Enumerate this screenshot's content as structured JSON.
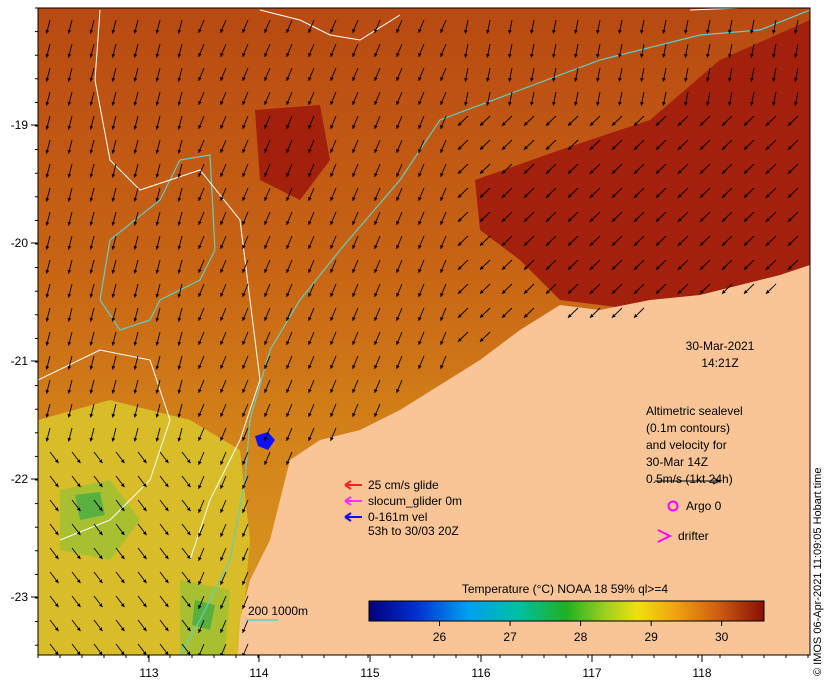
{
  "map": {
    "x_ticks": [
      "113",
      "114",
      "115",
      "116",
      "117",
      "118"
    ],
    "y_ticks": [
      "-19",
      "-20",
      "-21",
      "-22",
      "-23"
    ],
    "timestamp": {
      "date": "30-Mar-2021",
      "time": "14:21Z"
    },
    "altimetry_note": [
      "Altimetric sealevel",
      "(0.1m contours)",
      "and velocity for",
      "30-Mar 14Z",
      "0.5m/s (1kt 24h)"
    ],
    "argo_label": "Argo 0",
    "drifter_label": "drifter",
    "glider_legend": [
      "25 cm/s glide",
      "slocum_glider 0m",
      "0-161m vel",
      "53h to 30/03 20Z"
    ],
    "isobath_label": "200  1000m",
    "colorbar": {
      "title": "Temperature (°C) NOAA 18 59% ql>=4",
      "ticks": [
        "26",
        "27",
        "28",
        "29",
        "30"
      ],
      "range": [
        25.0,
        30.6
      ]
    },
    "credit": "© IMOS 06-Apr-2021 11:09:05 Hobart time",
    "colors": {
      "land": "#f9c596",
      "isobath": "#5fd0c0",
      "contour": "#ffffff",
      "glider_red": "#ff2020",
      "glider_magenta": "#ff30ff",
      "glider_blue": "#1010ff",
      "argo": "#ff00ff"
    }
  }
}
